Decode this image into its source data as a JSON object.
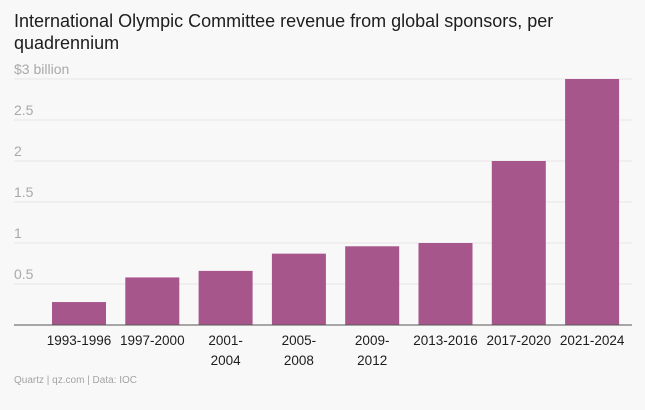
{
  "colors": {
    "bar": "#a6568a",
    "grid": "#e6e4e4",
    "axis": "#555555",
    "tick": "#a9a9a9",
    "text": "#1d1d1d",
    "background": "#f9f8f8"
  },
  "chart_data": {
    "type": "bar",
    "title": "International Olympic Committee revenue from global sponsors, per quadrennium",
    "categories": [
      "1993-1996",
      "1997-2000",
      "2001-2004",
      "2005-2008",
      "2009-2012",
      "2013-2016",
      "2017-2020",
      "2021-2024"
    ],
    "category_lines": [
      [
        "1993-1996"
      ],
      [
        "1997-2000"
      ],
      [
        "2001-",
        "2004"
      ],
      [
        "2005-",
        "2008"
      ],
      [
        "2009-",
        "2012"
      ],
      [
        "2013-2016"
      ],
      [
        "2017-2020"
      ],
      [
        "2021-2024"
      ]
    ],
    "values": [
      0.28,
      0.58,
      0.66,
      0.87,
      0.96,
      1.0,
      2.0,
      3.0
    ],
    "ylim": [
      0,
      3
    ],
    "yticks": [
      0,
      0.5,
      1,
      1.5,
      2,
      2.5,
      3
    ],
    "ytick_labels": [
      "",
      "0.5",
      "1",
      "1.5",
      "2",
      "2.5",
      "$3 billion"
    ],
    "xlabel": "",
    "ylabel": "",
    "grid": true
  },
  "footer": {
    "source": "Quartz | qz.com | Data: IOC"
  }
}
